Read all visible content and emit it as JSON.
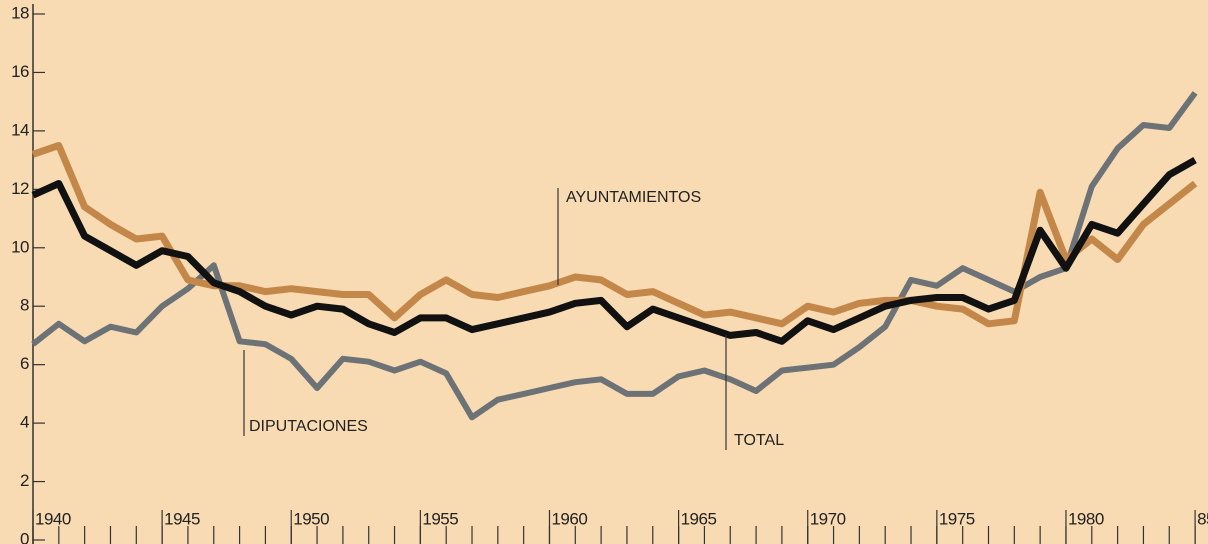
{
  "chart_data": {
    "type": "line",
    "x": [
      1940,
      1941,
      1942,
      1943,
      1944,
      1945,
      1946,
      1947,
      1948,
      1949,
      1950,
      1951,
      1952,
      1953,
      1954,
      1955,
      1956,
      1957,
      1958,
      1959,
      1960,
      1961,
      1962,
      1963,
      1964,
      1965,
      1966,
      1967,
      1968,
      1969,
      1970,
      1971,
      1972,
      1973,
      1974,
      1975,
      1976,
      1977,
      1978,
      1979,
      1980,
      1981,
      1982,
      1983,
      1984,
      1985
    ],
    "series": [
      {
        "name": "DIPUTACIONES",
        "color": "#6d7276",
        "values": [
          6.7,
          7.4,
          6.8,
          7.3,
          7.1,
          8.0,
          8.6,
          9.4,
          6.8,
          6.7,
          6.2,
          5.2,
          6.2,
          6.1,
          5.8,
          6.1,
          5.7,
          4.2,
          4.8,
          5.0,
          5.2,
          5.4,
          5.5,
          5.0,
          5.0,
          5.6,
          5.8,
          5.5,
          5.1,
          5.8,
          5.9,
          6.0,
          6.6,
          7.3,
          8.9,
          8.7,
          9.3,
          8.9,
          8.5,
          9.0,
          9.3,
          12.1,
          13.4,
          14.2,
          14.1,
          15.3
        ]
      },
      {
        "name": "AYUNTAMIENTOS",
        "color": "#c4874a",
        "values": [
          13.2,
          13.5,
          11.4,
          10.8,
          10.3,
          10.4,
          8.9,
          8.7,
          8.7,
          8.5,
          8.6,
          8.5,
          8.4,
          8.4,
          7.6,
          8.4,
          8.9,
          8.4,
          8.3,
          8.5,
          8.7,
          9.0,
          8.9,
          8.4,
          8.5,
          8.1,
          7.7,
          7.8,
          7.6,
          7.4,
          8.0,
          7.8,
          8.1,
          8.2,
          8.2,
          8.0,
          7.9,
          7.4,
          7.5,
          11.9,
          9.6,
          10.3,
          9.6,
          10.8,
          11.5,
          12.2
        ]
      },
      {
        "name": "TOTAL",
        "color": "#111111",
        "values": [
          11.8,
          12.2,
          10.4,
          9.9,
          9.4,
          9.9,
          9.7,
          8.8,
          8.5,
          8.0,
          7.7,
          8.0,
          7.9,
          7.4,
          7.1,
          7.6,
          7.6,
          7.2,
          7.4,
          7.6,
          7.8,
          8.1,
          8.2,
          7.3,
          7.9,
          7.6,
          7.3,
          7.0,
          7.1,
          6.8,
          7.5,
          7.2,
          7.6,
          8.0,
          8.2,
          8.3,
          8.3,
          7.9,
          8.2,
          10.6,
          9.3,
          10.8,
          10.5,
          11.5,
          12.5,
          13.0
        ]
      }
    ],
    "annotations": [
      "AYUNTAMIENTOS",
      "DIPUTACIONES",
      "TOTAL"
    ],
    "xlim": [
      1940,
      1985.5
    ],
    "xticks": [
      1940,
      1945,
      1950,
      1955,
      1960,
      1965,
      1970,
      1975,
      1980,
      {
        "value": 1985,
        "label": "85"
      }
    ],
    "ylim": [
      0,
      18
    ],
    "yticks": [
      0,
      2,
      4,
      6,
      8,
      10,
      12,
      14,
      16,
      18
    ],
    "axis_color": "#333333"
  }
}
